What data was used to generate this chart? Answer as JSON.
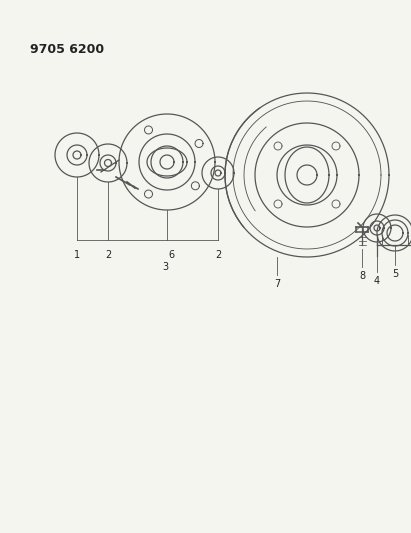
{
  "title": "9705 6200",
  "background_color": "#f5f5f0",
  "line_color": "#555555",
  "text_color": "#222222",
  "figsize": [
    4.11,
    5.33
  ],
  "dpi": 100,
  "title_fontsize": 9,
  "label_fontsize": 7
}
